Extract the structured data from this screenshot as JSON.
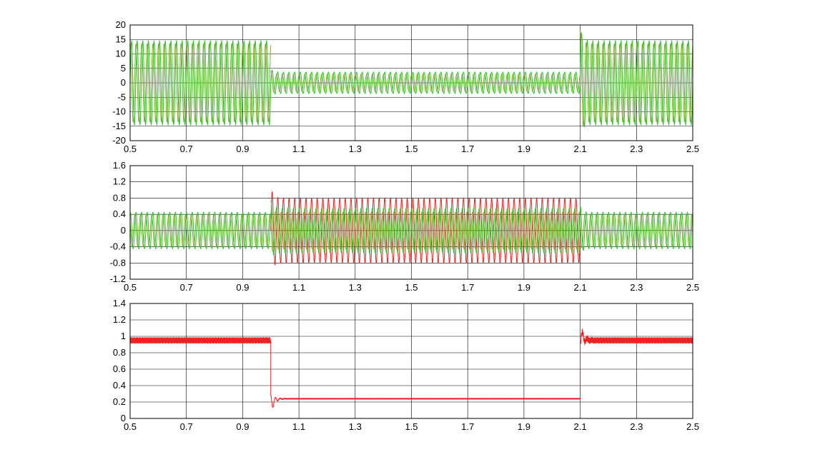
{
  "chart_data": [
    {
      "type": "line",
      "title": "",
      "xlabel": "",
      "ylabel": "",
      "xlim": [
        0.5,
        2.5
      ],
      "ylim": [
        -20,
        20
      ],
      "grid": true,
      "x_ticks": [
        "0.5",
        "0.7",
        "0.9",
        "1.1",
        "1.3",
        "1.5",
        "1.7",
        "1.9",
        "2.1",
        "2.3",
        "2.5"
      ],
      "y_ticks": [
        "20",
        "15",
        "10",
        "5",
        "0",
        "-5",
        "-10",
        "-15",
        "-20"
      ],
      "series": [
        {
          "color": "#22cc22",
          "kind": "oscillation",
          "segments": [
            {
              "x": [
                0.5,
                1.0
              ],
              "amplitude": 14.5
            },
            {
              "x": [
                1.0,
                2.1
              ],
              "amplitude": 3.7
            },
            {
              "x": [
                2.1,
                2.5
              ],
              "amplitude": 14.5
            }
          ]
        },
        {
          "color": "#88aa33",
          "kind": "oscillation",
          "segments": [
            {
              "x": [
                0.5,
                1.0
              ],
              "amplitude": 13.5
            },
            {
              "x": [
                1.0,
                2.1
              ],
              "amplitude": 3.0
            },
            {
              "x": [
                2.1,
                2.5
              ],
              "amplitude": 13.5
            }
          ]
        }
      ]
    },
    {
      "type": "line",
      "title": "",
      "xlabel": "",
      "ylabel": "",
      "xlim": [
        0.5,
        2.5
      ],
      "ylim": [
        -1.2,
        1.6
      ],
      "grid": true,
      "x_ticks": [
        "0.5",
        "0.7",
        "0.9",
        "1.1",
        "1.3",
        "1.5",
        "1.7",
        "1.9",
        "2.1",
        "2.3",
        "2.5"
      ],
      "y_ticks": [
        "1.6",
        "1.2",
        "0.8",
        "0.4",
        "0",
        "-0.4",
        "-0.8",
        "-1.2"
      ],
      "series": [
        {
          "color": "#ee2222",
          "kind": "oscillation",
          "segments": [
            {
              "x": [
                1.0,
                2.1
              ],
              "amplitude": 0.8
            }
          ]
        },
        {
          "color": "#22cc22",
          "kind": "oscillation",
          "segments": [
            {
              "x": [
                0.5,
                1.0
              ],
              "amplitude": 0.45
            },
            {
              "x": [
                1.0,
                2.1
              ],
              "amplitude": 0.55
            },
            {
              "x": [
                2.1,
                2.5
              ],
              "amplitude": 0.45
            }
          ]
        },
        {
          "color": "#88aa33",
          "kind": "oscillation",
          "segments": [
            {
              "x": [
                0.5,
                1.0
              ],
              "amplitude": 0.38
            },
            {
              "x": [
                1.0,
                2.1
              ],
              "amplitude": 0.45
            },
            {
              "x": [
                2.1,
                2.5
              ],
              "amplitude": 0.38
            }
          ]
        }
      ]
    },
    {
      "type": "line",
      "title": "",
      "xlabel": "",
      "ylabel": "",
      "xlim": [
        0.5,
        2.5
      ],
      "ylim": [
        0,
        1.4
      ],
      "grid": true,
      "x_ticks": [
        "0.5",
        "0.7",
        "0.9",
        "1.1",
        "1.3",
        "1.5",
        "1.7",
        "1.9",
        "2.1",
        "2.3",
        "2.5"
      ],
      "y_ticks": [
        "1.4",
        "1.2",
        "1",
        "0.8",
        "0.6",
        "0.4",
        "0.2",
        "0"
      ],
      "series": [
        {
          "color": "#ee2222",
          "kind": "level",
          "segments": [
            {
              "x": [
                0.5,
                1.0
              ],
              "level": 0.95
            },
            {
              "x": [
                1.0,
                2.1
              ],
              "level": 0.24
            },
            {
              "x": [
                2.1,
                2.5
              ],
              "level": 0.95
            }
          ]
        }
      ]
    }
  ]
}
